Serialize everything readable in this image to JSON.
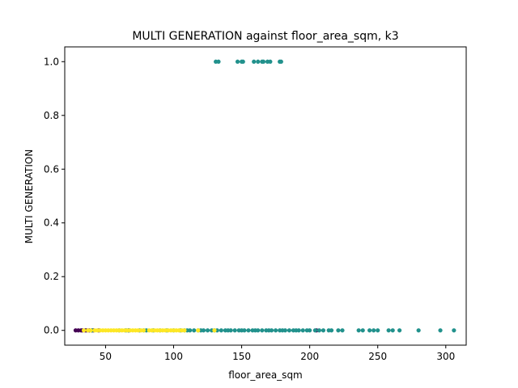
{
  "chart_data": {
    "type": "scatter",
    "title": "MULTI GENERATION against floor_area_sqm, k3",
    "xlabel": "floor_area_sqm",
    "ylabel": "MULTI GENERATION",
    "xlim": [
      20,
      315
    ],
    "ylim": [
      -0.055,
      1.055
    ],
    "xticks": [
      50,
      100,
      150,
      200,
      250,
      300
    ],
    "yticks": [
      0.0,
      0.2,
      0.4,
      0.6,
      0.8,
      1.0
    ],
    "xtick_labels": [
      "50",
      "100",
      "150",
      "200",
      "250",
      "300"
    ],
    "ytick_labels": [
      "0.0",
      "0.2",
      "0.4",
      "0.6",
      "0.8",
      "1.0"
    ],
    "grid": false,
    "series": [
      {
        "cluster": 0,
        "color": "#440154",
        "x": [
          28,
          30,
          32,
          33,
          35,
          36,
          38,
          40,
          41,
          45,
          67,
          205
        ],
        "y": [
          0,
          0,
          0,
          0,
          0,
          0,
          0,
          0,
          0,
          0,
          0,
          0
        ]
      },
      {
        "cluster": 1,
        "color": "#21918c",
        "x": [
          40,
          60,
          65,
          67,
          75,
          78,
          80,
          85,
          90,
          95,
          100,
          105,
          108,
          110,
          112,
          115,
          118,
          120,
          122,
          125,
          128,
          130,
          132,
          135,
          138,
          140,
          142,
          145,
          148,
          150,
          152,
          155,
          158,
          160,
          162,
          165,
          168,
          170,
          172,
          175,
          178,
          180,
          182,
          185,
          188,
          190,
          192,
          195,
          198,
          200,
          204,
          207,
          210,
          214,
          216,
          221,
          224,
          236,
          239,
          244,
          247,
          250,
          258,
          261,
          266,
          280,
          296,
          306,
          131,
          133,
          147,
          150,
          151,
          159,
          162,
          165,
          166,
          169,
          171,
          178,
          179
        ],
        "y": [
          0,
          0,
          0,
          0,
          0,
          0,
          0,
          0,
          0,
          0,
          0,
          0,
          0,
          0,
          0,
          0,
          0,
          0,
          0,
          0,
          0,
          0,
          0,
          0,
          0,
          0,
          0,
          0,
          0,
          0,
          0,
          0,
          0,
          0,
          0,
          0,
          0,
          0,
          0,
          0,
          0,
          0,
          0,
          0,
          0,
          0,
          0,
          0,
          0,
          0,
          0,
          0,
          0,
          0,
          0,
          0,
          0,
          0,
          0,
          0,
          0,
          0,
          0,
          0,
          0,
          0,
          0,
          0,
          1,
          1,
          1,
          1,
          1,
          1,
          1,
          1,
          1,
          1,
          1,
          1,
          1
        ]
      },
      {
        "cluster": 2,
        "color": "#fde725",
        "x": [
          34,
          37,
          39,
          42,
          44,
          46,
          48,
          50,
          52,
          54,
          56,
          58,
          60,
          62,
          64,
          66,
          68,
          70,
          72,
          74,
          76,
          78,
          82,
          84,
          86,
          88,
          90,
          92,
          94,
          96,
          98,
          100,
          102,
          104,
          106,
          108,
          118,
          130
        ],
        "y": [
          0,
          0,
          0,
          0,
          0,
          0,
          0,
          0,
          0,
          0,
          0,
          0,
          0,
          0,
          0,
          0,
          0,
          0,
          0,
          0,
          0,
          0,
          0,
          0,
          0,
          0,
          0,
          0,
          0,
          0,
          0,
          0,
          0,
          0,
          0,
          0,
          0,
          0
        ]
      }
    ]
  }
}
